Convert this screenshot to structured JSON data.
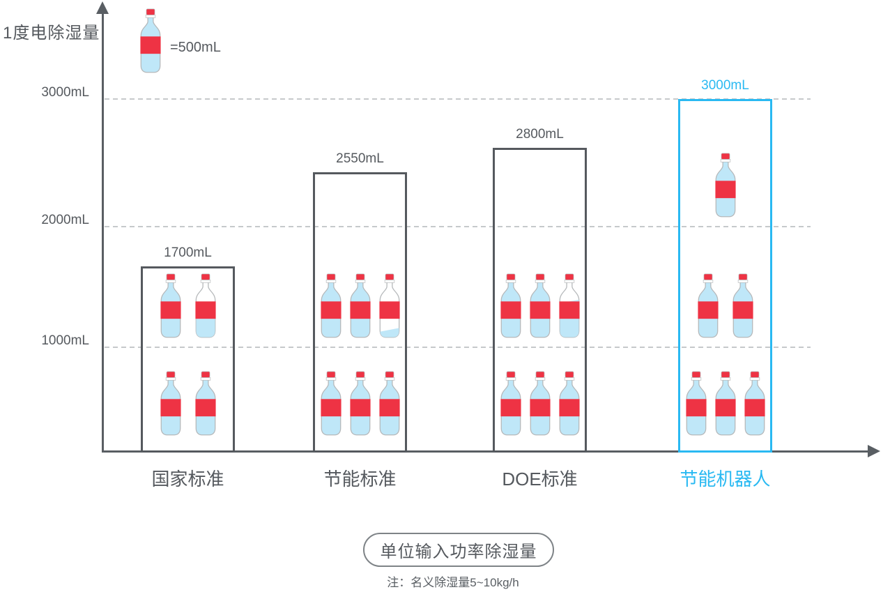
{
  "colors": {
    "accent_blue": "#29b9f2",
    "bar_border": "#55595e",
    "axis": "#595e63",
    "grid_line": "#c6c9cb",
    "text": "#55595e",
    "bottle_red": "#ee3344",
    "bottle_water": "#bfe7f8",
    "bottle_outline": "#b5b8ba",
    "background": "#ffffff"
  },
  "chart_data": {
    "type": "bar",
    "variant": "pictogram-bottle-bar",
    "y_axis_label": "1度电除湿量",
    "unit": "mL",
    "legend": {
      "text": "=500mL",
      "bottle_value_ml": 500,
      "position": "top-left"
    },
    "y_ticks": [
      {
        "label": "3000mL",
        "value": 3000
      },
      {
        "label": "2000mL",
        "value": 2000
      },
      {
        "label": "1000mL",
        "value": 1000
      }
    ],
    "ylim": [
      0,
      3500
    ],
    "grid": "dashed-horizontal",
    "categories": [
      "国家标准",
      "节能标准",
      "DOE标准",
      "节能机器人"
    ],
    "values": [
      1700,
      2550,
      2800,
      3000
    ],
    "value_labels": [
      "1700mL",
      "2550mL",
      "2800mL",
      "3000mL"
    ],
    "highlighted_index": 3,
    "bars": [
      {
        "category": "国家标准",
        "value": 1700,
        "label": "1700mL",
        "highlighted": false,
        "bottle_rows": [
          {
            "slot": "mid",
            "fills": [
              1,
              0.4
            ]
          },
          {
            "slot": "low",
            "fills": [
              1,
              1
            ]
          }
        ]
      },
      {
        "category": "节能标准",
        "value": 2550,
        "label": "2550mL",
        "highlighted": false,
        "bottle_rows": [
          {
            "slot": "mid",
            "fills": [
              1,
              1,
              0.1
            ]
          },
          {
            "slot": "low",
            "fills": [
              1,
              1,
              1
            ]
          }
        ]
      },
      {
        "category": "DOE标准",
        "value": 2800,
        "label": "2800mL",
        "highlighted": false,
        "bottle_rows": [
          {
            "slot": "mid",
            "fills": [
              1,
              1,
              0.6
            ]
          },
          {
            "slot": "low",
            "fills": [
              1,
              1,
              1
            ]
          }
        ]
      },
      {
        "category": "节能机器人",
        "value": 3000,
        "label": "3000mL",
        "highlighted": true,
        "bottle_rows": [
          {
            "slot": "top",
            "fills": [
              1
            ]
          },
          {
            "slot": "mid",
            "fills": [
              1,
              1
            ]
          },
          {
            "slot": "low",
            "fills": [
              1,
              1,
              1
            ]
          }
        ]
      }
    ],
    "footer_badge": "单位输入功率除湿量",
    "footer_note": "注：名义除湿量5~10kg/h"
  }
}
